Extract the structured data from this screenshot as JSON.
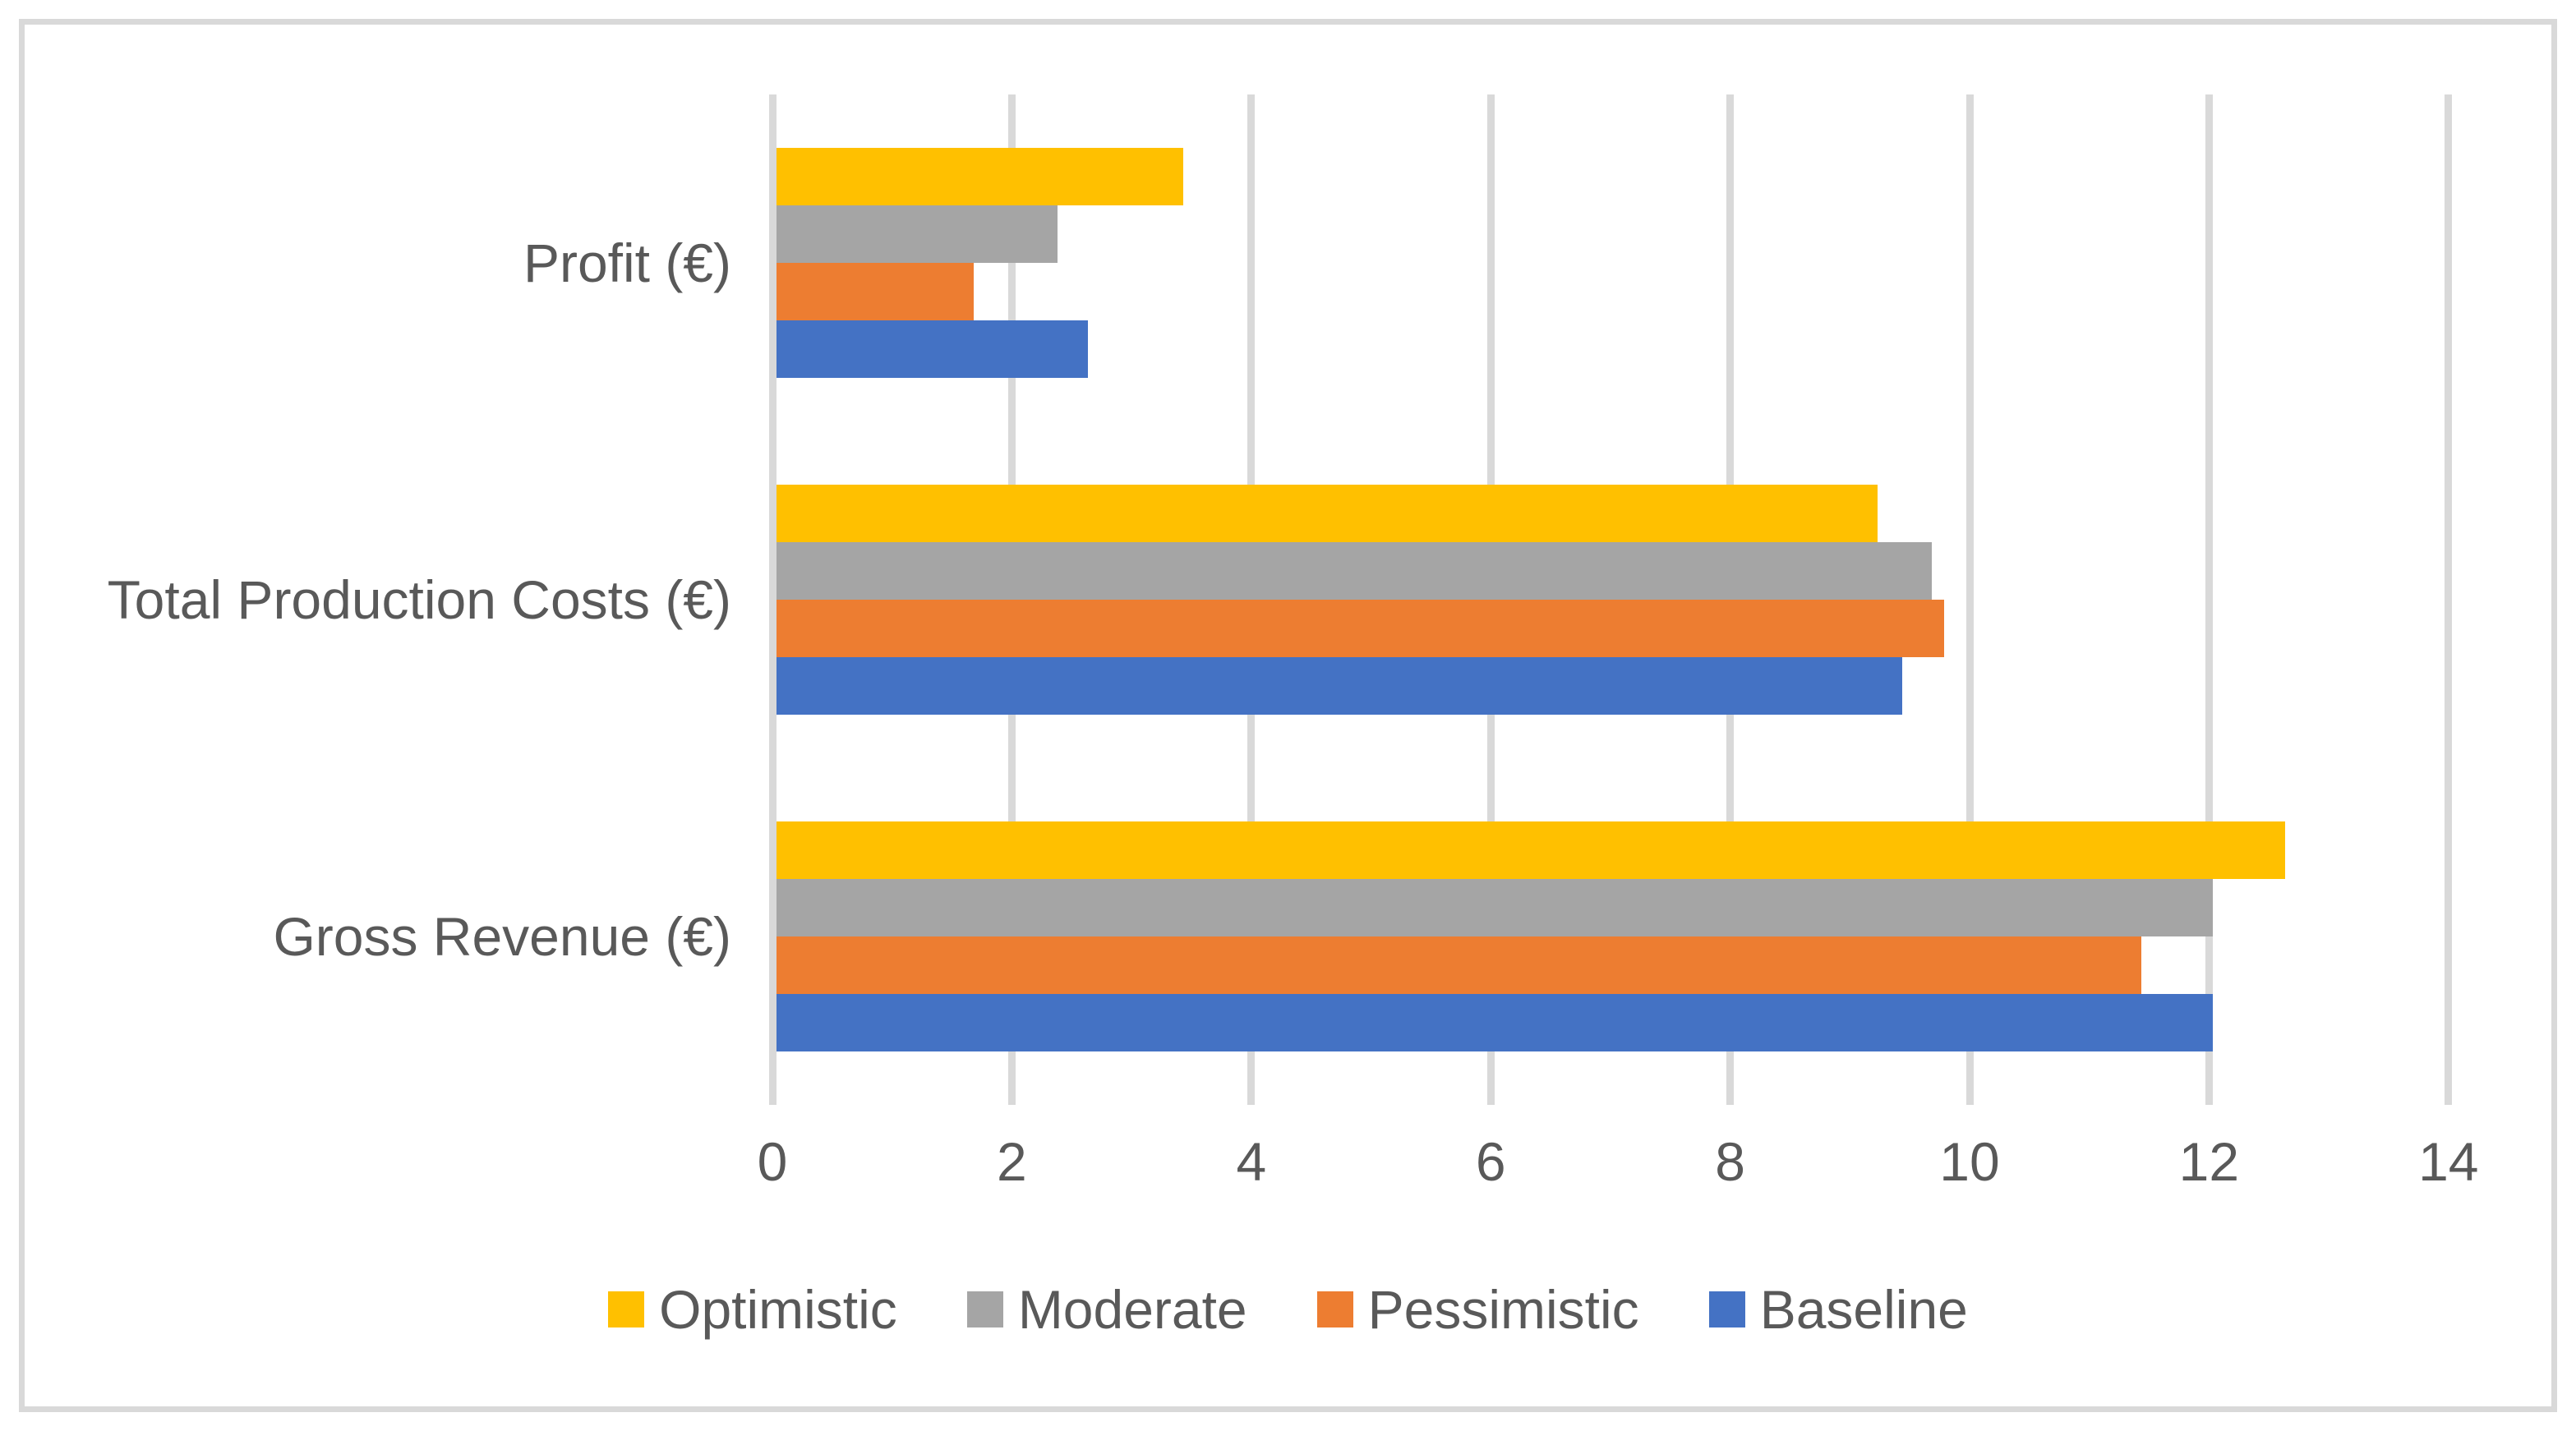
{
  "chart_data": {
    "type": "bar",
    "orientation": "horizontal",
    "title": "",
    "categories": [
      "Profit (€)",
      "Total Production Costs (€)",
      "Gross Revenue (€)"
    ],
    "series": [
      {
        "name": "Optimistic",
        "color": "#FFC000",
        "values": [
          3.4,
          9.2,
          12.6
        ]
      },
      {
        "name": "Moderate",
        "color": "#A5A5A5",
        "values": [
          2.35,
          9.65,
          12.0
        ]
      },
      {
        "name": "Pessimistic",
        "color": "#ED7D31",
        "values": [
          1.65,
          9.75,
          11.4
        ]
      },
      {
        "name": "Baseline",
        "color": "#4472C4",
        "values": [
          2.6,
          9.4,
          12.0
        ]
      }
    ],
    "series_display_order_top_to_bottom": [
      "Optimistic",
      "Moderate",
      "Pessimistic",
      "Baseline"
    ],
    "xlim": [
      0,
      14
    ],
    "xticks": [
      0,
      2,
      4,
      6,
      8,
      10,
      12,
      14
    ],
    "xtick_labels": [
      "0",
      "2",
      "4",
      "6",
      "8",
      "10",
      "12",
      "14"
    ],
    "grid": "vertical-gridlines-only",
    "legend_position": "bottom-center",
    "legend_labels": [
      "Optimistic",
      "Moderate",
      "Pessimistic",
      "Baseline"
    ],
    "colors": {
      "gridline": "#D9D9D9",
      "chart_border": "#D9D9D9",
      "axis_text": "#595959",
      "background": "#FFFFFF"
    }
  }
}
